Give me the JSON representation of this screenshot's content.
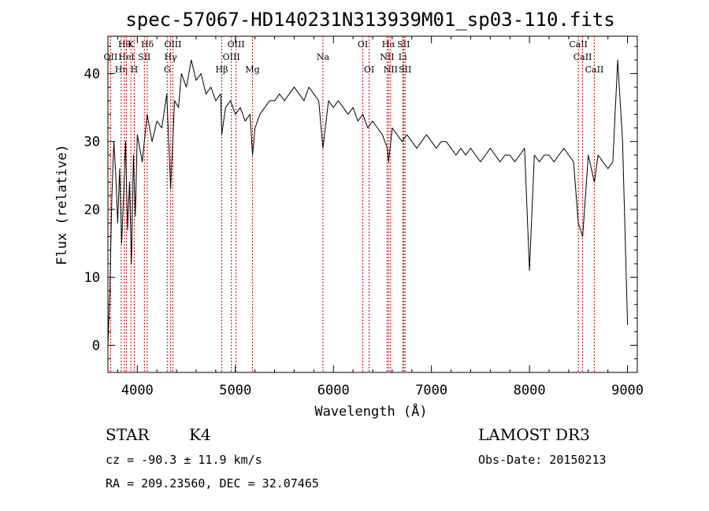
{
  "chart_data": {
    "type": "line",
    "title": "spec-57067-HD140231N313939M01_sp03-110.fits",
    "xlabel": "Wavelength (Å)",
    "ylabel": "Flux (relative)",
    "xlim": [
      3700,
      9100
    ],
    "ylim": [
      -4,
      45.5
    ],
    "x_ticks": [
      4000,
      5000,
      6000,
      7000,
      8000,
      9000
    ],
    "y_ticks": [
      0,
      10,
      20,
      30,
      40
    ],
    "grid": false,
    "legend": "none",
    "line_color": "#000000",
    "marker_color": "#cc0000",
    "series": [
      {
        "x": [
          3700,
          3720,
          3740,
          3760,
          3780,
          3800,
          3820,
          3840,
          3860,
          3880,
          3900,
          3920,
          3940,
          3960,
          3980,
          4000,
          4050,
          4100,
          4150,
          4200,
          4250,
          4300,
          4340,
          4380,
          4420,
          4450,
          4500,
          4550,
          4600,
          4650,
          4700,
          4750,
          4800,
          4850,
          4861,
          4900,
          4950,
          5000,
          5050,
          5100,
          5150,
          5175,
          5200,
          5250,
          5300,
          5350,
          5400,
          5450,
          5500,
          5550,
          5600,
          5650,
          5700,
          5750,
          5800,
          5850,
          5893,
          5950,
          6000,
          6050,
          6100,
          6150,
          6200,
          6250,
          6300,
          6350,
          6400,
          6450,
          6500,
          6550,
          6563,
          6600,
          6650,
          6700,
          6750,
          6800,
          6850,
          6900,
          6950,
          7000,
          7050,
          7100,
          7150,
          7200,
          7250,
          7300,
          7350,
          7400,
          7450,
          7500,
          7550,
          7600,
          7650,
          7700,
          7750,
          7800,
          7850,
          7900,
          7950,
          8000,
          8050,
          8100,
          8150,
          8200,
          8250,
          8300,
          8350,
          8400,
          8450,
          8498,
          8542,
          8600,
          8662,
          8700,
          8750,
          8800,
          8850,
          8900,
          8950,
          9000
        ],
        "y": [
          0,
          8,
          22,
          30,
          25,
          18,
          26,
          15,
          22,
          30,
          17,
          24,
          12,
          28,
          19,
          31,
          27,
          34,
          30,
          33,
          32,
          37,
          23,
          36,
          35,
          40,
          38,
          42,
          39,
          40,
          37,
          38,
          36,
          37,
          31,
          35,
          36,
          34,
          35,
          33,
          34,
          28,
          32,
          34,
          35,
          36,
          36,
          37,
          36,
          37,
          38,
          37,
          36,
          38,
          37,
          36,
          29,
          36,
          35,
          36,
          35,
          34,
          35,
          33,
          34,
          32,
          33,
          32,
          31,
          29,
          27,
          32,
          31,
          30,
          31,
          30,
          29,
          30,
          31,
          30,
          29,
          30,
          30,
          29,
          28,
          29,
          28,
          29,
          28,
          27,
          28,
          29,
          28,
          27,
          28,
          28,
          27,
          28,
          29,
          11,
          28,
          27,
          28,
          28,
          27,
          28,
          29,
          28,
          27,
          18,
          16,
          28,
          24,
          28,
          27,
          26,
          27,
          42,
          30,
          3
        ]
      }
    ],
    "line_markers": [
      {
        "wavelength": 3727,
        "label": "OII",
        "row": 2
      },
      {
        "wavelength": 3835,
        "label": "Hη",
        "row": 3
      },
      {
        "wavelength": 3869,
        "label": "Hθ",
        "row": 1
      },
      {
        "wavelength": 3889,
        "label": "HeI",
        "row": 2
      },
      {
        "wavelength": 3934,
        "label": "K",
        "row": 1
      },
      {
        "wavelength": 3969,
        "label": "H",
        "row": 3
      },
      {
        "wavelength": 4072,
        "label": "SII",
        "row": 2
      },
      {
        "wavelength": 4102,
        "label": "Hδ",
        "row": 1
      },
      {
        "wavelength": 4305,
        "label": "G",
        "row": 3
      },
      {
        "wavelength": 4340,
        "label": "Hγ",
        "row": 2
      },
      {
        "wavelength": 4363,
        "label": "OIII",
        "row": 1
      },
      {
        "wavelength": 4861,
        "label": "Hβ",
        "row": 3
      },
      {
        "wavelength": 4959,
        "label": "OIII",
        "row": 2
      },
      {
        "wavelength": 5007,
        "label": "OIII",
        "row": 1
      },
      {
        "wavelength": 5175,
        "label": "Mg",
        "row": 3
      },
      {
        "wavelength": 5893,
        "label": "Na",
        "row": 2
      },
      {
        "wavelength": 6300,
        "label": "OI",
        "row": 1
      },
      {
        "wavelength": 6364,
        "label": "OI",
        "row": 3
      },
      {
        "wavelength": 6548,
        "label": "NII",
        "row": 2
      },
      {
        "wavelength": 6563,
        "label": "Hα",
        "row": 1
      },
      {
        "wavelength": 6583,
        "label": "NII",
        "row": 3
      },
      {
        "wavelength": 6707,
        "label": "Li",
        "row": 2
      },
      {
        "wavelength": 6716,
        "label": "SII",
        "row": 1
      },
      {
        "wavelength": 6731,
        "label": "SII",
        "row": 3
      },
      {
        "wavelength": 8498,
        "label": "CaII",
        "row": 1
      },
      {
        "wavelength": 8542,
        "label": "CaII",
        "row": 2
      },
      {
        "wavelength": 8662,
        "label": "CaII",
        "row": 3
      }
    ]
  },
  "info": {
    "class": "STAR",
    "subclass": "K4",
    "survey": "LAMOST DR3",
    "cz": "cz = -90.3 ± 11.9 km/s",
    "obs_date": "Obs-Date: 20150213",
    "coords": "RA = 209.23560, DEC =  32.07465"
  }
}
